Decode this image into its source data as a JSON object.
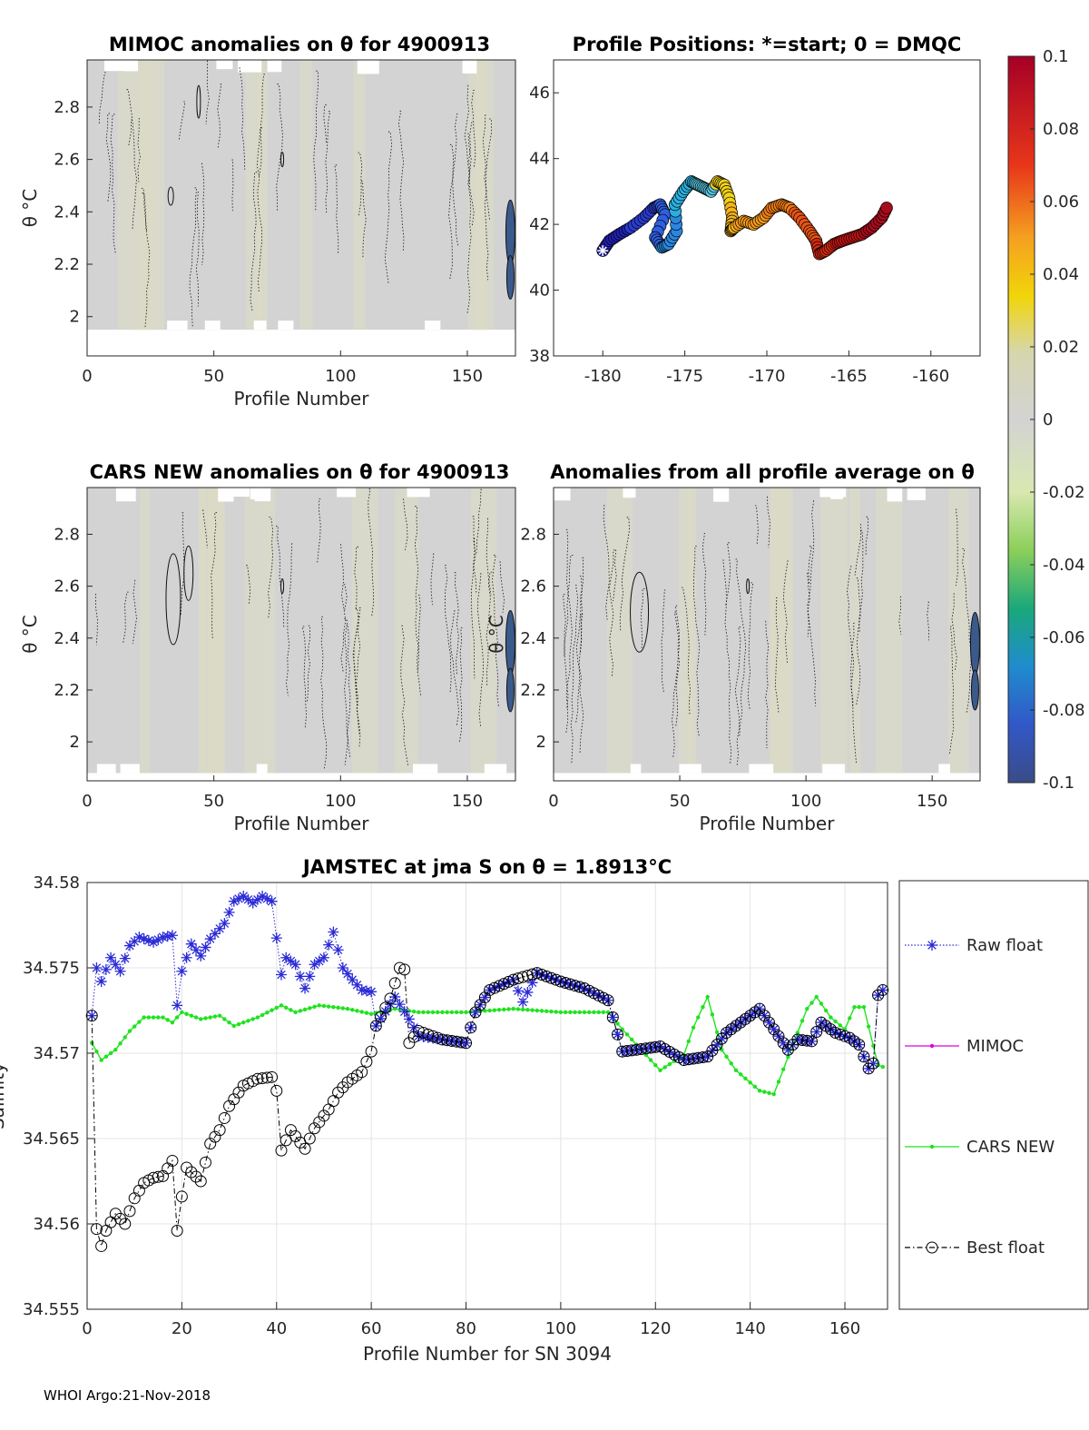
{
  "footer": "WHOI Argo:21-Nov-2018",
  "colors": {
    "raw": "#2b2bd6",
    "mimoc": "#e000e0",
    "cars": "#1fe31f",
    "best": "#000000",
    "field": "#d3d3d3"
  },
  "chart_data": [
    {
      "id": "mimoc_section",
      "type": "heatmap",
      "title": "MIMOC anomalies on θ  for 4900913",
      "xlabel": "Profile Number",
      "ylabel": "θ °C",
      "xlim": [
        0,
        169
      ],
      "ylim": [
        1.85,
        2.98
      ],
      "xticks": [
        "0",
        "50",
        "100",
        "150"
      ],
      "yticks": [
        "2",
        "2.2",
        "2.4",
        "2.6",
        "2.8"
      ]
    },
    {
      "id": "positions",
      "type": "scatter",
      "title": "Profile Positions: *=start; 0 = DMQC",
      "xlim": [
        -183,
        -157
      ],
      "ylim": [
        38,
        47
      ],
      "xticks": [
        "-180",
        "-175",
        "-170",
        "-165",
        "-160"
      ],
      "yticks": [
        "38",
        "40",
        "42",
        "44",
        "46"
      ],
      "lon": [
        -180,
        -179.6,
        -179,
        -178.3,
        -177.5,
        -176.9,
        -176.5,
        -176.2,
        -176.8,
        -176.4,
        -176.0,
        -175.5,
        -175.6,
        -175.1,
        -174.6,
        -174.2,
        -173.8,
        -173.4,
        -173.0,
        -172.6,
        -172.3,
        -172.1,
        -172.2,
        -172.0,
        -171.4,
        -170.8,
        -170.2,
        -169.7,
        -169.1,
        -168.6,
        -168.0,
        -167.4,
        -167.0,
        -166.8,
        -166.4,
        -165.9,
        -165.4,
        -164.8,
        -164.2,
        -163.6,
        -163.0,
        -162.6
      ],
      "lat": [
        41.2,
        41.5,
        41.7,
        41.9,
        42.2,
        42.5,
        42.6,
        42.3,
        41.6,
        41.3,
        41.4,
        41.8,
        42.6,
        43.0,
        43.3,
        43.2,
        43.1,
        43.0,
        43.3,
        43.2,
        42.8,
        42.2,
        41.8,
        41.9,
        42.1,
        42.0,
        42.2,
        42.5,
        42.6,
        42.5,
        42.2,
        41.8,
        41.5,
        41.1,
        41.2,
        41.4,
        41.5,
        41.6,
        41.7,
        41.9,
        42.2,
        42.6
      ],
      "colorbar": {
        "ticks": [
          "0.1",
          "0.08",
          "0.06",
          "0.04",
          "0.02",
          "0",
          "-0.02",
          "-0.04",
          "-0.06",
          "-0.08",
          "-0.1"
        ],
        "range": [
          -0.1,
          0.1
        ]
      }
    },
    {
      "id": "cars_section",
      "type": "heatmap",
      "title": "CARS NEW anomalies on θ for 4900913",
      "xlabel": "Profile Number",
      "ylabel": "θ °C",
      "xlim": [
        0,
        169
      ],
      "ylim": [
        1.85,
        2.98
      ],
      "xticks": [
        "0",
        "50",
        "100",
        "150"
      ],
      "yticks": [
        "2",
        "2.2",
        "2.4",
        "2.6",
        "2.8"
      ]
    },
    {
      "id": "mean_section",
      "type": "heatmap",
      "title": "Anomalies from all profile average on θ",
      "xlabel": "Profile Number",
      "ylabel": "θ °C",
      "xlim": [
        0,
        169
      ],
      "ylim": [
        1.85,
        2.98
      ],
      "xticks": [
        "0",
        "50",
        "100",
        "150"
      ],
      "yticks": [
        "2",
        "2.2",
        "2.4",
        "2.6",
        "2.8"
      ]
    },
    {
      "id": "salinity_series",
      "type": "line",
      "title": "JAMSTEC at jma S on θ = 1.8913°C",
      "xlabel": "Profile Number for SN 3094",
      "ylabel": "Salinity",
      "xlim": [
        0,
        169
      ],
      "ylim": [
        34.555,
        34.58
      ],
      "xticks": [
        "0",
        "20",
        "40",
        "60",
        "80",
        "100",
        "120",
        "140",
        "160"
      ],
      "yticks": [
        "34.555",
        "34.56",
        "34.565",
        "34.57",
        "34.575",
        "34.58"
      ],
      "legend": [
        "Raw float",
        "MIMOC",
        "CARS NEW",
        "Best float"
      ],
      "series": [
        {
          "name": "Raw float",
          "knots": [
            [
              1,
              34.5722
            ],
            [
              2,
              34.575
            ],
            [
              3,
              34.5742
            ],
            [
              5,
              34.5756
            ],
            [
              7,
              34.5748
            ],
            [
              9,
              34.5763
            ],
            [
              11,
              34.5768
            ],
            [
              14,
              34.5765
            ],
            [
              16,
              34.5768
            ],
            [
              18,
              34.5769
            ],
            [
              19,
              34.5728
            ],
            [
              20,
              34.5748
            ],
            [
              22,
              34.5764
            ],
            [
              24,
              34.5757
            ],
            [
              26,
              34.5767
            ],
            [
              29,
              34.5776
            ],
            [
              31,
              34.5789
            ],
            [
              33,
              34.5792
            ],
            [
              35,
              34.5788
            ],
            [
              37,
              34.5792
            ],
            [
              39,
              34.5789
            ],
            [
              41,
              34.5746
            ],
            [
              42,
              34.5756
            ],
            [
              44,
              34.5752
            ],
            [
              46,
              34.5738
            ],
            [
              48,
              34.5752
            ],
            [
              50,
              34.5756
            ],
            [
              52,
              34.5771
            ],
            [
              54,
              34.575
            ],
            [
              56,
              34.5743
            ],
            [
              58,
              34.5737
            ],
            [
              60,
              34.5736
            ],
            [
              61,
              34.5716
            ],
            [
              65,
              34.5733
            ],
            [
              68,
              34.572
            ],
            [
              70,
              34.571
            ],
            [
              75,
              34.5708
            ],
            [
              80,
              34.5706
            ],
            [
              82,
              34.5724
            ],
            [
              85,
              34.5737
            ],
            [
              90,
              34.5743
            ],
            [
              92,
              34.573
            ],
            [
              95,
              34.5747
            ],
            [
              100,
              34.5742
            ],
            [
              105,
              34.5738
            ],
            [
              110,
              34.5731
            ],
            [
              113,
              34.5701
            ],
            [
              116,
              34.5702
            ],
            [
              121,
              34.5704
            ],
            [
              126,
              34.5696
            ],
            [
              131,
              34.5698
            ],
            [
              135,
              34.5712
            ],
            [
              140,
              34.5722
            ],
            [
              142,
              34.5726
            ],
            [
              146,
              34.571
            ],
            [
              148,
              34.5702
            ],
            [
              150,
              34.5708
            ],
            [
              153,
              34.5707
            ],
            [
              155,
              34.5718
            ],
            [
              158,
              34.5712
            ],
            [
              161,
              34.5709
            ],
            [
              163,
              34.5705
            ],
            [
              165,
              34.5691
            ],
            [
              166,
              34.5694
            ],
            [
              167,
              34.5734
            ],
            [
              168,
              34.5737
            ]
          ]
        },
        {
          "name": "CARS NEW",
          "knots": [
            [
              1,
              34.5706
            ],
            [
              3,
              34.5696
            ],
            [
              6,
              34.5702
            ],
            [
              9,
              34.5713
            ],
            [
              12,
              34.5721
            ],
            [
              16,
              34.5721
            ],
            [
              18,
              34.5718
            ],
            [
              20,
              34.5724
            ],
            [
              24,
              34.572
            ],
            [
              28,
              34.5722
            ],
            [
              31,
              34.5716
            ],
            [
              36,
              34.5721
            ],
            [
              41,
              34.5728
            ],
            [
              44,
              34.5724
            ],
            [
              49,
              34.5728
            ],
            [
              55,
              34.5726
            ],
            [
              60,
              34.5723
            ],
            [
              65,
              34.5726
            ],
            [
              70,
              34.5724
            ],
            [
              80,
              34.5724
            ],
            [
              90,
              34.5726
            ],
            [
              100,
              34.5724
            ],
            [
              105,
              34.5724
            ],
            [
              110,
              34.5724
            ],
            [
              113,
              34.5714
            ],
            [
              117,
              34.5702
            ],
            [
              121,
              34.569
            ],
            [
              126,
              34.5699
            ],
            [
              128,
              34.5715
            ],
            [
              131,
              34.5733
            ],
            [
              134,
              34.5702
            ],
            [
              137,
              34.569
            ],
            [
              142,
              34.5678
            ],
            [
              145,
              34.5676
            ],
            [
              149,
              34.5705
            ],
            [
              152,
              34.5726
            ],
            [
              154,
              34.5733
            ],
            [
              157,
              34.5721
            ],
            [
              160,
              34.5714
            ],
            [
              162,
              34.5727
            ],
            [
              164,
              34.5727
            ],
            [
              167,
              34.5693
            ],
            [
              169,
              34.5691
            ]
          ]
        },
        {
          "name": "Best float",
          "knots": [
            [
              1,
              34.5722
            ],
            [
              2,
              34.5597
            ],
            [
              3,
              34.5587
            ],
            [
              4,
              34.5596
            ],
            [
              6,
              34.5606
            ],
            [
              8,
              34.56
            ],
            [
              10,
              34.5615
            ],
            [
              12,
              34.5624
            ],
            [
              14,
              34.5627
            ],
            [
              16,
              34.5628
            ],
            [
              18,
              34.5637
            ],
            [
              19,
              34.5596
            ],
            [
              20,
              34.5616
            ],
            [
              21,
              34.5633
            ],
            [
              24,
              34.5625
            ],
            [
              26,
              34.5647
            ],
            [
              28,
              34.5655
            ],
            [
              30,
              34.5669
            ],
            [
              33,
              34.5681
            ],
            [
              36,
              34.5685
            ],
            [
              39,
              34.5686
            ],
            [
              40,
              34.5678
            ],
            [
              41,
              34.5643
            ],
            [
              43,
              34.5655
            ],
            [
              46,
              34.5644
            ],
            [
              48,
              34.5656
            ],
            [
              51,
              34.5667
            ],
            [
              53,
              34.5677
            ],
            [
              55,
              34.5683
            ],
            [
              58,
              34.5689
            ],
            [
              60,
              34.5701
            ],
            [
              61,
              34.5716
            ],
            [
              64,
              34.5732
            ],
            [
              66,
              34.575
            ],
            [
              67,
              34.5749
            ],
            [
              68,
              34.5706
            ],
            [
              70,
              34.5713
            ],
            [
              75,
              34.5708
            ],
            [
              80,
              34.5706
            ],
            [
              82,
              34.5724
            ],
            [
              85,
              34.5737
            ],
            [
              90,
              34.5743
            ],
            [
              95,
              34.5747
            ],
            [
              100,
              34.5742
            ],
            [
              105,
              34.5738
            ],
            [
              110,
              34.5731
            ],
            [
              113,
              34.5701
            ],
            [
              116,
              34.5702
            ],
            [
              121,
              34.5704
            ],
            [
              126,
              34.5696
            ],
            [
              131,
              34.5698
            ],
            [
              135,
              34.5712
            ],
            [
              140,
              34.5722
            ],
            [
              142,
              34.5726
            ],
            [
              146,
              34.571
            ],
            [
              148,
              34.5702
            ],
            [
              150,
              34.5708
            ],
            [
              153,
              34.5707
            ],
            [
              155,
              34.5718
            ],
            [
              158,
              34.5712
            ],
            [
              161,
              34.5709
            ],
            [
              163,
              34.5705
            ],
            [
              165,
              34.5691
            ],
            [
              166,
              34.5694
            ],
            [
              167,
              34.5734
            ],
            [
              168,
              34.5737
            ]
          ]
        }
      ]
    }
  ]
}
